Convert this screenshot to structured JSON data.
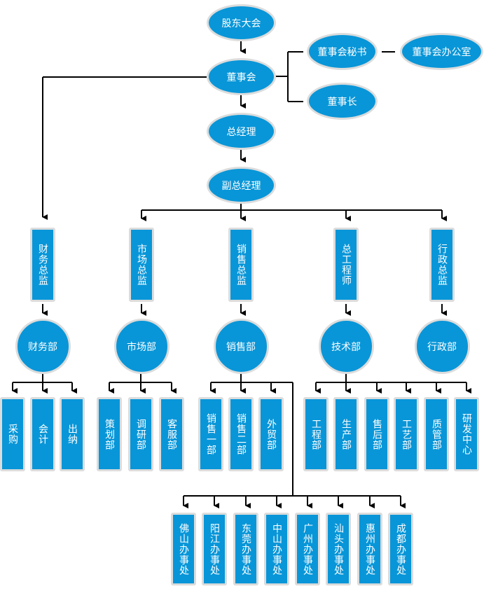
{
  "colors": {
    "node_fill": "#0896d8",
    "node_border": "#dcdcdc",
    "connector": "#000000",
    "text": "#ffffff"
  },
  "top": {
    "shareholders": "股东大会",
    "board": "董事会",
    "board_secretary": "董事会秘书",
    "board_office": "董事会办公室",
    "chairman": "董事长",
    "general_manager": "总经理",
    "deputy_general_manager": "副总经理"
  },
  "directors": [
    "财务总监",
    "市场总监",
    "销售总监",
    "总工程师",
    "行政总监"
  ],
  "departments": [
    "财务部",
    "市场部",
    "销售部",
    "技术部",
    "行政部"
  ],
  "finance_units": [
    "采购",
    "会计",
    "出纳"
  ],
  "market_units": [
    "策划部",
    "调研部",
    "客服部"
  ],
  "sales_units": [
    "销售一部",
    "销售二部",
    "外贸部"
  ],
  "tech_units": [
    "工程部",
    "生产部",
    "售后部",
    "工艺部",
    "质管部",
    "研发中心"
  ],
  "offices": [
    "佛山办事处",
    "阳江办事处",
    "东莞办事处",
    "中山办事处",
    "广州办事处",
    "汕头办事处",
    "惠州办事处",
    "成都办事处"
  ]
}
